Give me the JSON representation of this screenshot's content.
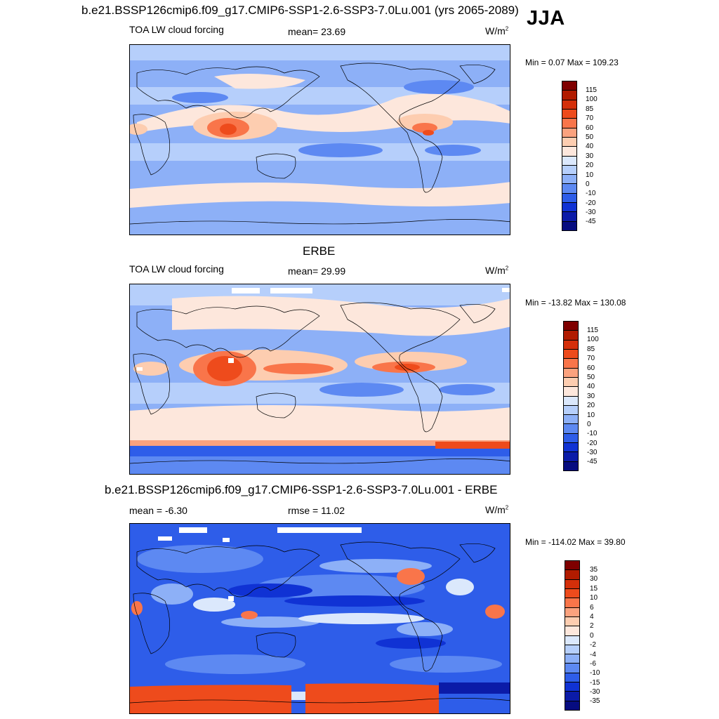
{
  "season": "JJA",
  "panels": [
    {
      "title": "b.e21.BSSP126cmip6.f09_g17.CMIP6-SSP1-2.6-SSP3-7.0Lu.001 (yrs 2065-2089)",
      "left_label": "TOA LW cloud forcing",
      "center_label": "mean=  23.69",
      "units": "W/m",
      "units_sup": "2",
      "minmax": "Min =   0.07 Max = 109.23",
      "colorbar": {
        "colors": [
          "#7f0000",
          "#b11b00",
          "#d42f0a",
          "#ee4b1c",
          "#f9754a",
          "#fba27e",
          "#fdcdb0",
          "#fde7dc",
          "#dbe8fc",
          "#b6cffb",
          "#8db0f7",
          "#5d89f2",
          "#2e5de9",
          "#1032d4",
          "#0b1ba8",
          "#060c80"
        ],
        "ticks": [
          "115",
          "100",
          "85",
          "70",
          "60",
          "50",
          "40",
          "30",
          "20",
          "10",
          "0",
          "-10",
          "-20",
          "-30",
          "-45"
        ]
      }
    },
    {
      "title": "ERBE",
      "left_label": "TOA LW cloud forcing",
      "center_label": "mean=  29.99",
      "units": "W/m",
      "units_sup": "2",
      "minmax": "Min = -13.82 Max = 130.08",
      "colorbar": {
        "colors": [
          "#7f0000",
          "#b11b00",
          "#d42f0a",
          "#ee4b1c",
          "#f9754a",
          "#fba27e",
          "#fdcdb0",
          "#fde7dc",
          "#dbe8fc",
          "#b6cffb",
          "#8db0f7",
          "#5d89f2",
          "#2e5de9",
          "#1032d4",
          "#0b1ba8",
          "#060c80"
        ],
        "ticks": [
          "115",
          "100",
          "85",
          "70",
          "60",
          "50",
          "40",
          "30",
          "20",
          "10",
          "0",
          "-10",
          "-20",
          "-30",
          "-45"
        ]
      }
    },
    {
      "title": "b.e21.BSSP126cmip6.f09_g17.CMIP6-SSP1-2.6-SSP3-7.0Lu.001 - ERBE",
      "left_label": "mean =  -6.30",
      "center_label": "rmse =  11.02",
      "units": "W/m",
      "units_sup": "2",
      "minmax": "Min = -114.02 Max =  39.80",
      "colorbar": {
        "colors": [
          "#7f0000",
          "#b11b00",
          "#d42f0a",
          "#ee4b1c",
          "#f9754a",
          "#fba27e",
          "#fdcdb0",
          "#fde7dc",
          "#dbe8fc",
          "#b6cffb",
          "#8db0f7",
          "#5d89f2",
          "#2e5de9",
          "#1032d4",
          "#0b1ba8",
          "#060c80"
        ],
        "ticks": [
          "35",
          "30",
          "15",
          "10",
          "6",
          "4",
          "2",
          "0",
          "-2",
          "-4",
          "-6",
          "-10",
          "-15",
          "-30",
          "-35"
        ]
      }
    }
  ]
}
